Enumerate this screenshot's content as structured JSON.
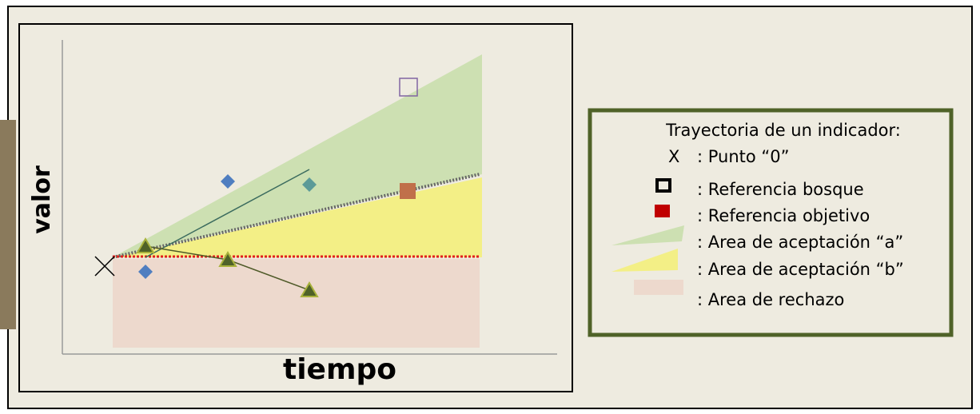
{
  "axes": {
    "y_label": "valor",
    "x_label": "tiempo"
  },
  "legend": {
    "title": "Trayectoria de un indicador:",
    "items": [
      {
        "symbol": "X",
        "label": ": Punto “0”"
      },
      {
        "label": ": Referencia bosque"
      },
      {
        "label": ": Referencia objetivo"
      },
      {
        "label": ": Area de aceptación “a”"
      },
      {
        "label": ": Area de aceptación “b”"
      },
      {
        "label": ": Area de rechazo"
      }
    ]
  }
}
